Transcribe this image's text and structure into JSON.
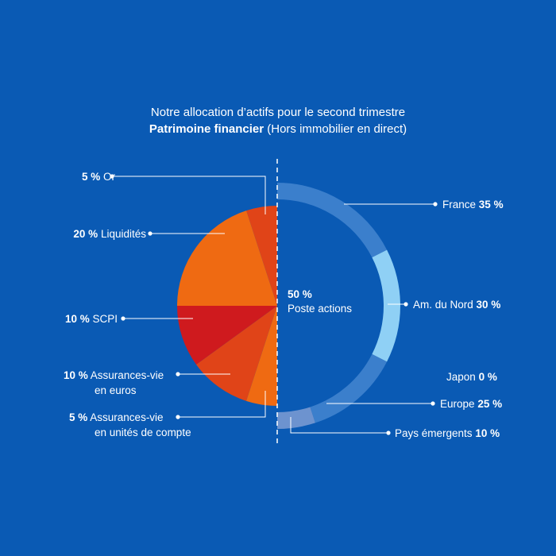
{
  "title": {
    "line1": "Notre allocation d’actifs pour le second trimestre",
    "line2_bold": "Patrimoine financier",
    "line2_rest": "(Hors immobilier en direct)"
  },
  "center_label": {
    "value": "50 %",
    "text": "Poste actions"
  },
  "colors": {
    "background": "#0a5ab4",
    "or": "#e04418",
    "liquidites": "#ef6a12",
    "scpi": "#cf1a1e",
    "av_euros": "#e04418",
    "av_uc": "#ef6a12",
    "france": "#3b7fcc",
    "am_nord": "#8fd0f5",
    "europe": "#3b7fcc",
    "pays_emergents": "#6d93cf"
  },
  "chart_data": [
    {
      "type": "pie",
      "name": "",
      "slices": [
        {
          "key": "or",
          "percent": "5 %",
          "label": "Or",
          "value": 5
        },
        {
          "key": "liquidites",
          "percent": "20 %",
          "label": "Liquidités",
          "value": 20
        },
        {
          "key": "scpi",
          "percent": "10 %",
          "label": "SCPI",
          "value": 10
        },
        {
          "key": "av_euros",
          "percent": "10 %",
          "label": "Assurances-vie",
          "label2": "en euros",
          "value": 10
        },
        {
          "key": "av_uc",
          "percent": "5 %",
          "label": "Assurances-vie",
          "label2": "en unités de compte",
          "value": 5
        }
      ]
    },
    {
      "type": "donut",
      "name": "",
      "total": 50,
      "slices": [
        {
          "key": "france",
          "label": "France",
          "percent": "35 %",
          "value": 35
        },
        {
          "key": "am_nord",
          "label": "Am. du Nord",
          "percent": "30 %",
          "value": 30
        },
        {
          "key": "japon",
          "label": "Japon",
          "percent": "0 %",
          "value": 0
        },
        {
          "key": "europe",
          "label": "Europe",
          "percent": "25 %",
          "value": 25
        },
        {
          "key": "pays_emergents",
          "label": "Pays émergents",
          "percent": "10 %",
          "value": 10
        }
      ]
    }
  ]
}
